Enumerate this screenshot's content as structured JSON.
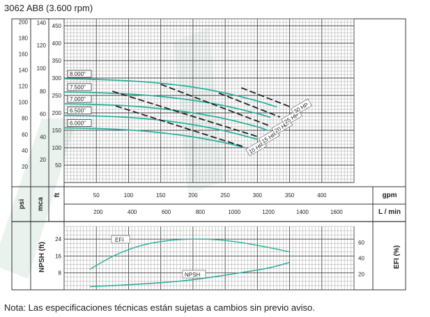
{
  "title": "3062 AB8 (3.600 rpm)",
  "footnote": "Nota: Las especificaciones técnicas están sujetas a cambios sin previo aviso.",
  "colors": {
    "curve": "#2ab09a",
    "hp_line": "#222222",
    "grid_major": "#444444",
    "grid_minor": "#9a9a9a",
    "watermark": "#e4efe9"
  },
  "chart_data": [
    {
      "type": "line",
      "name": "performance",
      "axes": {
        "psi": {
          "label": "psi",
          "ticks": [
            20,
            40,
            60,
            80,
            100,
            120,
            140,
            160,
            180,
            200
          ]
        },
        "mca": {
          "label": "mca",
          "ticks": [
            20,
            40,
            60,
            80,
            100,
            120,
            140
          ]
        },
        "ft": {
          "label": "ft",
          "ticks": [
            50,
            100,
            150,
            200,
            250,
            300,
            350,
            400,
            450
          ],
          "range": [
            0,
            470
          ]
        },
        "gpm": {
          "label": "gpm",
          "ticks": [
            50,
            100,
            150,
            200,
            250,
            300,
            350,
            400
          ],
          "range": [
            0,
            450
          ]
        },
        "lmin": {
          "label": "L / min",
          "ticks": [
            200,
            400,
            600,
            800,
            1000,
            1200,
            1400,
            1600
          ]
        }
      },
      "grid": true,
      "series": [
        {
          "name": "8.000\"",
          "x": [
            0,
            50,
            100,
            150,
            200,
            250,
            300,
            330
          ],
          "y": [
            298,
            296,
            292,
            285,
            274,
            257,
            234,
            217
          ]
        },
        {
          "name": "7.500\"",
          "x": [
            0,
            50,
            100,
            150,
            200,
            250,
            300,
            320
          ],
          "y": [
            260,
            258,
            254,
            247,
            236,
            220,
            198,
            187
          ]
        },
        {
          "name": "7.000\"",
          "x": [
            0,
            50,
            100,
            150,
            200,
            250,
            300,
            315
          ],
          "y": [
            226,
            224,
            220,
            212,
            200,
            183,
            160,
            150
          ]
        },
        {
          "name": "6.500\"",
          "x": [
            0,
            50,
            100,
            150,
            200,
            250,
            300
          ],
          "y": [
            193,
            191,
            187,
            179,
            166,
            148,
            124
          ]
        },
        {
          "name": "6.000\"",
          "x": [
            0,
            50,
            100,
            150,
            200,
            250,
            280
          ],
          "y": [
            157,
            155,
            151,
            143,
            131,
            114,
            100
          ]
        }
      ],
      "power_lines": [
        {
          "name": "10 HP",
          "x": [
            80,
            280
          ],
          "y": [
            220,
            102
          ]
        },
        {
          "name": "15 HP",
          "x": [
            75,
            300
          ],
          "y": [
            262,
            132
          ]
        },
        {
          "name": "20 HP",
          "x": [
            150,
            320
          ],
          "y": [
            282,
            162
          ]
        },
        {
          "name": "25 HP",
          "x": [
            240,
            335
          ],
          "y": [
            257,
            188
          ]
        },
        {
          "name": "30 HP",
          "x": [
            275,
            350
          ],
          "y": [
            272,
            218
          ]
        }
      ]
    },
    {
      "type": "line",
      "name": "npsh-efficiency",
      "axes": {
        "npsh": {
          "label": "NPSH (ft)",
          "ticks": [
            8,
            16,
            24
          ]
        },
        "efi": {
          "label": "EFI (%)",
          "ticks": [
            20,
            40,
            60
          ]
        }
      },
      "grid": true,
      "series": [
        {
          "name": "EFI",
          "x": [
            40,
            80,
            120,
            160,
            200,
            240,
            280,
            320,
            350
          ],
          "y": [
            26,
            44,
            56,
            62,
            64,
            63,
            59,
            53,
            48
          ]
        },
        {
          "name": "NPSH",
          "x": [
            40,
            100,
            160,
            200,
            240,
            280,
            320,
            350
          ],
          "y": [
            1.5,
            2.4,
            3.6,
            4.8,
            6.5,
            8.4,
            10.5,
            13.0
          ]
        }
      ]
    }
  ]
}
